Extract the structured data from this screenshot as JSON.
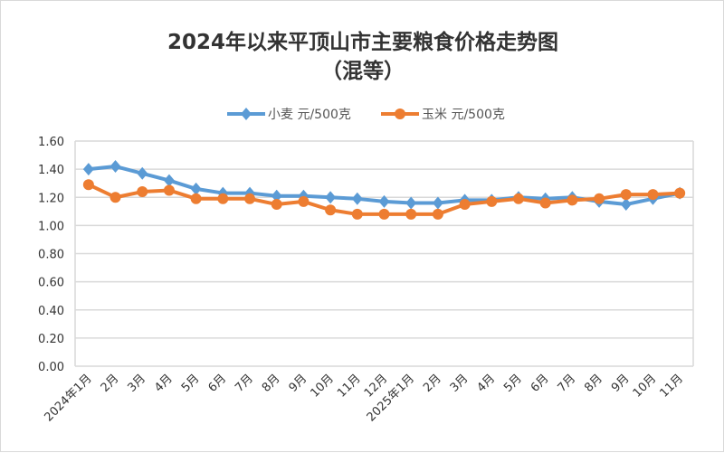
{
  "chart_data": {
    "type": "line",
    "title": "2024年以来平顶山市主要粮食价格走势图",
    "subtitle": "（混等）",
    "xlabel": "",
    "ylabel": "",
    "ylim": [
      0,
      1.6
    ],
    "yticks": [
      "0.00",
      "0.20",
      "0.40",
      "0.60",
      "0.80",
      "1.00",
      "1.20",
      "1.40",
      "1.60"
    ],
    "grid": true,
    "legend": "top",
    "categories": [
      "2024年1月",
      "2月",
      "3月",
      "4月",
      "5月",
      "6月",
      "7月",
      "8月",
      "9月",
      "10月",
      "11月",
      "12月",
      "2025年1月",
      "2月",
      "3月",
      "4月",
      "5月",
      "6月",
      "7月",
      "8月",
      "9月",
      "10月",
      "11月"
    ],
    "series": [
      {
        "name": "小麦 元/500克",
        "color": "#5b9bd5",
        "marker": "diamond",
        "values": [
          1.4,
          1.42,
          1.37,
          1.32,
          1.26,
          1.23,
          1.23,
          1.21,
          1.21,
          1.2,
          1.19,
          1.17,
          1.16,
          1.16,
          1.18,
          1.18,
          1.2,
          1.19,
          1.2,
          1.17,
          1.15,
          1.19,
          1.23
        ]
      },
      {
        "name": "玉米 元/500克",
        "color": "#ed7d31",
        "marker": "circle",
        "values": [
          1.29,
          1.2,
          1.24,
          1.25,
          1.19,
          1.19,
          1.19,
          1.15,
          1.17,
          1.11,
          1.08,
          1.08,
          1.08,
          1.08,
          1.15,
          1.17,
          1.19,
          1.16,
          1.18,
          1.19,
          1.22,
          1.22,
          1.23
        ]
      }
    ]
  }
}
